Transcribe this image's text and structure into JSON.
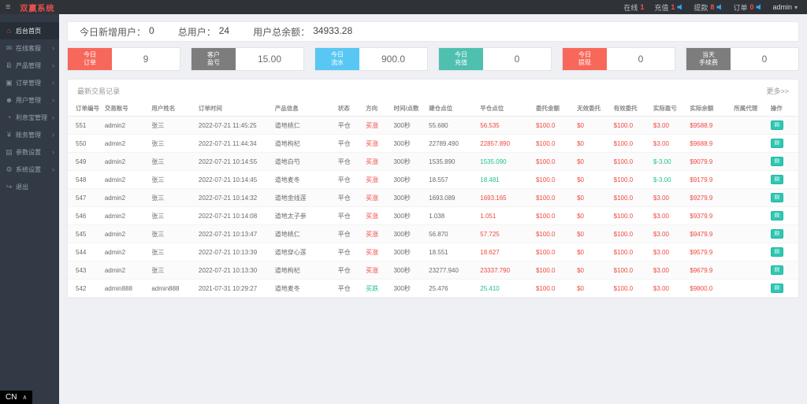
{
  "topbar": {
    "hamburger_glyph": "≡",
    "title": "双赢系统",
    "stats": [
      {
        "label": "在线",
        "value": "1",
        "speaker": false
      },
      {
        "label": "充值",
        "value": "1",
        "speaker": true
      },
      {
        "label": "提款",
        "value": "8",
        "speaker": true
      },
      {
        "label": "订单",
        "value": "0",
        "speaker": true
      }
    ],
    "user": "admin",
    "caret_glyph": "▾"
  },
  "sidebar": {
    "items": [
      {
        "label": "后台首页",
        "icon": "home-icon",
        "glyph": "⌂",
        "active": true,
        "arrow": false
      },
      {
        "label": "在线客服",
        "icon": "chat-icon",
        "glyph": "✉",
        "active": false,
        "arrow": true
      },
      {
        "label": "产品管理",
        "icon": "product-icon",
        "glyph": "Ƀ",
        "active": false,
        "arrow": true
      },
      {
        "label": "订单管理",
        "icon": "orders-icon",
        "glyph": "▣",
        "active": false,
        "arrow": true
      },
      {
        "label": "用户管理",
        "icon": "users-icon",
        "glyph": "☻",
        "active": false,
        "arrow": true
      },
      {
        "label": "利息宝管理",
        "icon": "interest-icon",
        "glyph": "◔",
        "active": false,
        "arrow": true
      },
      {
        "label": "账务管理",
        "icon": "finance-icon",
        "glyph": "¥",
        "active": false,
        "arrow": true
      },
      {
        "label": "参数设置",
        "icon": "params-icon",
        "glyph": "▤",
        "active": false,
        "arrow": true
      },
      {
        "label": "系统设置",
        "icon": "system-icon",
        "glyph": "⚙",
        "active": false,
        "arrow": true
      },
      {
        "label": "退出",
        "icon": "logout-icon",
        "glyph": "↪",
        "active": false,
        "arrow": false
      }
    ],
    "arrow_glyph": "›"
  },
  "overview": {
    "items": [
      {
        "label": "今日新增用户：",
        "value": "0"
      },
      {
        "label": "总用户：",
        "value": "24"
      },
      {
        "label": "用户总余额：",
        "value": "34933.28"
      }
    ]
  },
  "cards": [
    {
      "lines": [
        "今日",
        "订单"
      ],
      "value": "9",
      "color": "#f7685b"
    },
    {
      "lines": [
        "客户",
        "盈亏"
      ],
      "value": "15.00",
      "color": "#7d7d7d"
    },
    {
      "lines": [
        "今日",
        "流水"
      ],
      "value": "900.0",
      "color": "#58c7f3"
    },
    {
      "lines": [
        "今日",
        "充值"
      ],
      "value": "0",
      "color": "#4fc0b0"
    },
    {
      "lines": [
        "今日",
        "提现"
      ],
      "value": "0",
      "color": "#f7685b"
    },
    {
      "lines": [
        "当天",
        "手续费"
      ],
      "value": "0",
      "color": "#7d7d7d"
    }
  ],
  "table": {
    "title": "最新交易记录",
    "more_label": "更多>>",
    "action_glyph": "▤",
    "columns": [
      {
        "key": "id",
        "label": "订单编号",
        "width": "4.6%"
      },
      {
        "key": "account",
        "label": "交易账号",
        "width": "6.4%"
      },
      {
        "key": "name",
        "label": "用户姓名",
        "width": "6.4%"
      },
      {
        "key": "time",
        "label": "订单时间",
        "width": "10.4%"
      },
      {
        "key": "product",
        "label": "产品信息",
        "width": "8.6%"
      },
      {
        "key": "status",
        "label": "状态",
        "width": "3.8%"
      },
      {
        "key": "direction",
        "label": "方向",
        "width": "3.8%",
        "colorKey": "direction_color"
      },
      {
        "key": "duration",
        "label": "时间/点数",
        "width": "4.8%"
      },
      {
        "key": "open",
        "label": "建仓点位",
        "width": "7.0%"
      },
      {
        "key": "close",
        "label": "平仓点位",
        "width": "7.6%",
        "colorKey": "close_color"
      },
      {
        "key": "amount",
        "label": "委托金额",
        "width": "5.6%",
        "color": "red"
      },
      {
        "key": "invalid",
        "label": "无效委托",
        "width": "5.0%",
        "color": "red"
      },
      {
        "key": "valid",
        "label": "有效委托",
        "width": "5.4%",
        "color": "red"
      },
      {
        "key": "profit",
        "label": "实际盈亏",
        "width": "5.0%",
        "colorKey": "profit_color"
      },
      {
        "key": "balance",
        "label": "实际余额",
        "width": "6.0%",
        "color": "red"
      },
      {
        "key": "agent",
        "label": "所属代理",
        "width": "5.0%"
      },
      {
        "key": "action",
        "label": "操作",
        "width": "4.2%",
        "type": "button"
      }
    ],
    "rows": [
      {
        "id": "551",
        "account": "admin2",
        "name": "张三",
        "time": "2022-07-21 11:45:25",
        "product": "道地桃仁",
        "status": "平仓",
        "direction": "买涨",
        "direction_color": "red",
        "duration": "300秒",
        "open": "55.680",
        "close": "56.535",
        "close_color": "red",
        "amount": "$100.0",
        "invalid": "$0",
        "valid": "$100.0",
        "profit": "$3.00",
        "profit_color": "red",
        "balance": "$9588.9",
        "agent": ""
      },
      {
        "id": "550",
        "account": "admin2",
        "name": "张三",
        "time": "2022-07-21 11:44:34",
        "product": "道地枸杞",
        "status": "平仓",
        "direction": "买涨",
        "direction_color": "red",
        "duration": "300秒",
        "open": "22789.490",
        "close": "22857.890",
        "close_color": "red",
        "amount": "$100.0",
        "invalid": "$0",
        "valid": "$100.0",
        "profit": "$3.00",
        "profit_color": "red",
        "balance": "$9688.9",
        "agent": ""
      },
      {
        "id": "549",
        "account": "admin2",
        "name": "张三",
        "time": "2022-07-21 10:14:55",
        "product": "道地白芍",
        "status": "平仓",
        "direction": "买涨",
        "direction_color": "red",
        "duration": "300秒",
        "open": "1535.890",
        "close": "1535.090",
        "close_color": "green",
        "amount": "$100.0",
        "invalid": "$0",
        "valid": "$100.0",
        "profit": "$-3.00",
        "profit_color": "green",
        "balance": "$9079.9",
        "agent": ""
      },
      {
        "id": "548",
        "account": "admin2",
        "name": "张三",
        "time": "2022-07-21 10:14:45",
        "product": "道地麦冬",
        "status": "平仓",
        "direction": "买涨",
        "direction_color": "red",
        "duration": "300秒",
        "open": "18.557",
        "close": "18.481",
        "close_color": "green",
        "amount": "$100.0",
        "invalid": "$0",
        "valid": "$100.0",
        "profit": "$-3.00",
        "profit_color": "green",
        "balance": "$9179.9",
        "agent": ""
      },
      {
        "id": "547",
        "account": "admin2",
        "name": "张三",
        "time": "2022-07-21 10:14:32",
        "product": "道地金线莲",
        "status": "平仓",
        "direction": "买涨",
        "direction_color": "red",
        "duration": "300秒",
        "open": "1693.089",
        "close": "1693.165",
        "close_color": "red",
        "amount": "$100.0",
        "invalid": "$0",
        "valid": "$100.0",
        "profit": "$3.00",
        "profit_color": "red",
        "balance": "$9279.9",
        "agent": ""
      },
      {
        "id": "546",
        "account": "admin2",
        "name": "张三",
        "time": "2022-07-21 10:14:08",
        "product": "道地太子参",
        "status": "平仓",
        "direction": "买涨",
        "direction_color": "red",
        "duration": "300秒",
        "open": "1.038",
        "close": "1.051",
        "close_color": "red",
        "amount": "$100.0",
        "invalid": "$0",
        "valid": "$100.0",
        "profit": "$3.00",
        "profit_color": "red",
        "balance": "$9379.9",
        "agent": ""
      },
      {
        "id": "545",
        "account": "admin2",
        "name": "张三",
        "time": "2022-07-21 10:13:47",
        "product": "道地桃仁",
        "status": "平仓",
        "direction": "买涨",
        "direction_color": "red",
        "duration": "300秒",
        "open": "56.870",
        "close": "57.725",
        "close_color": "red",
        "amount": "$100.0",
        "invalid": "$0",
        "valid": "$100.0",
        "profit": "$3.00",
        "profit_color": "red",
        "balance": "$9479.9",
        "agent": ""
      },
      {
        "id": "544",
        "account": "admin2",
        "name": "张三",
        "time": "2022-07-21 10:13:39",
        "product": "道地穿心莲",
        "status": "平仓",
        "direction": "买涨",
        "direction_color": "red",
        "duration": "300秒",
        "open": "18.551",
        "close": "18.627",
        "close_color": "red",
        "amount": "$100.0",
        "invalid": "$0",
        "valid": "$100.0",
        "profit": "$3.00",
        "profit_color": "red",
        "balance": "$9579.9",
        "agent": ""
      },
      {
        "id": "543",
        "account": "admin2",
        "name": "张三",
        "time": "2022-07-21 10:13:30",
        "product": "道地枸杞",
        "status": "平仓",
        "direction": "买涨",
        "direction_color": "red",
        "duration": "300秒",
        "open": "23277.940",
        "close": "23337.790",
        "close_color": "red",
        "amount": "$100.0",
        "invalid": "$0",
        "valid": "$100.0",
        "profit": "$3.00",
        "profit_color": "red",
        "balance": "$9679.9",
        "agent": ""
      },
      {
        "id": "542",
        "account": "admin888",
        "name": "admin888",
        "time": "2021-07-31 10:29:27",
        "product": "道地麦冬",
        "status": "平仓",
        "direction": "买跌",
        "direction_color": "green",
        "duration": "300秒",
        "open": "25.476",
        "close": "25.410",
        "close_color": "green",
        "amount": "$100.0",
        "invalid": "$0",
        "valid": "$100.0",
        "profit": "$3.00",
        "profit_color": "red",
        "balance": "$9800.0",
        "agent": ""
      }
    ]
  },
  "lang_indicator": {
    "label": "CN",
    "arrow": "∧"
  }
}
